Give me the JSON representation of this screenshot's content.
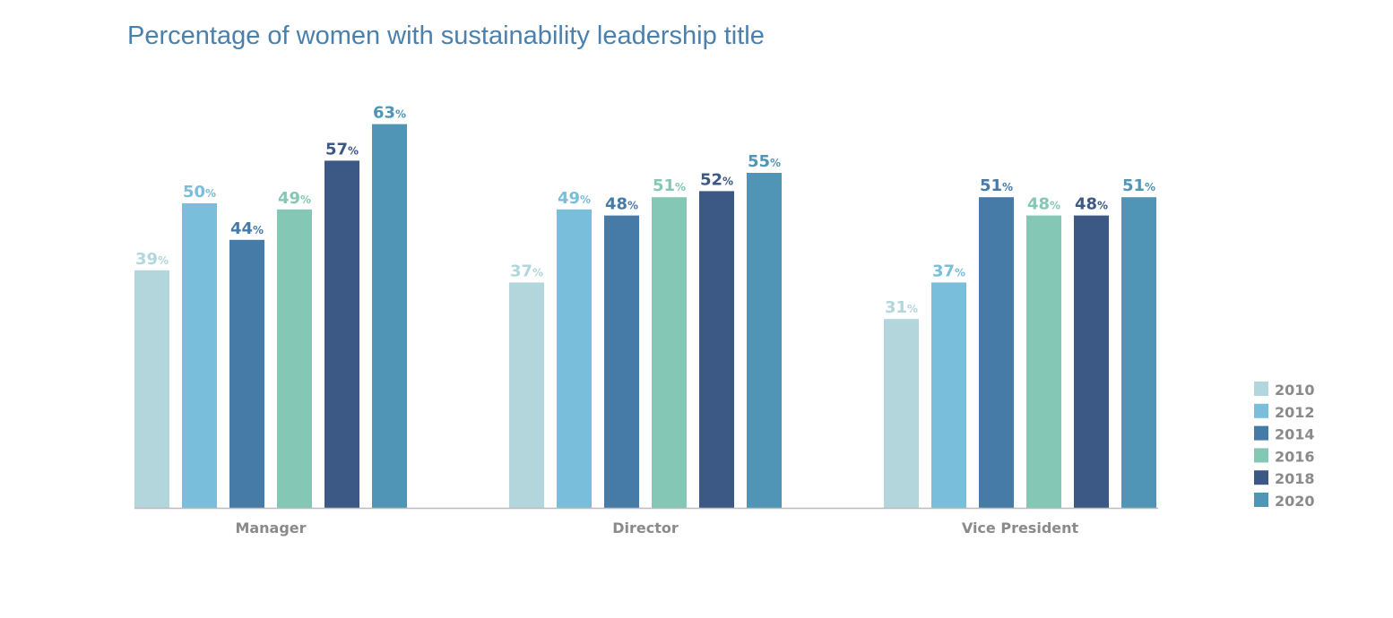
{
  "chart_data": {
    "type": "bar",
    "title": "Percentage of women with sustainability leadership title",
    "categories": [
      "Manager",
      "Director",
      "Vice President"
    ],
    "series": [
      {
        "name": "2010",
        "color": "#b2d6dc",
        "values": [
          39,
          37,
          31
        ]
      },
      {
        "name": "2012",
        "color": "#79bedb",
        "values": [
          50,
          49,
          37
        ]
      },
      {
        "name": "2014",
        "color": "#467ba8",
        "values": [
          44,
          48,
          51
        ]
      },
      {
        "name": "2016",
        "color": "#85c7b5",
        "values": [
          49,
          51,
          48
        ]
      },
      {
        "name": "2018",
        "color": "#3c5884",
        "values": [
          57,
          52,
          48
        ]
      },
      {
        "name": "2020",
        "color": "#5095b5",
        "values": [
          63,
          55,
          51
        ]
      }
    ],
    "value_suffix": "%",
    "ylim": [
      0,
      63
    ],
    "grid": false,
    "legend_position": "bottom-right",
    "axis_color": "#bbbbbb"
  }
}
